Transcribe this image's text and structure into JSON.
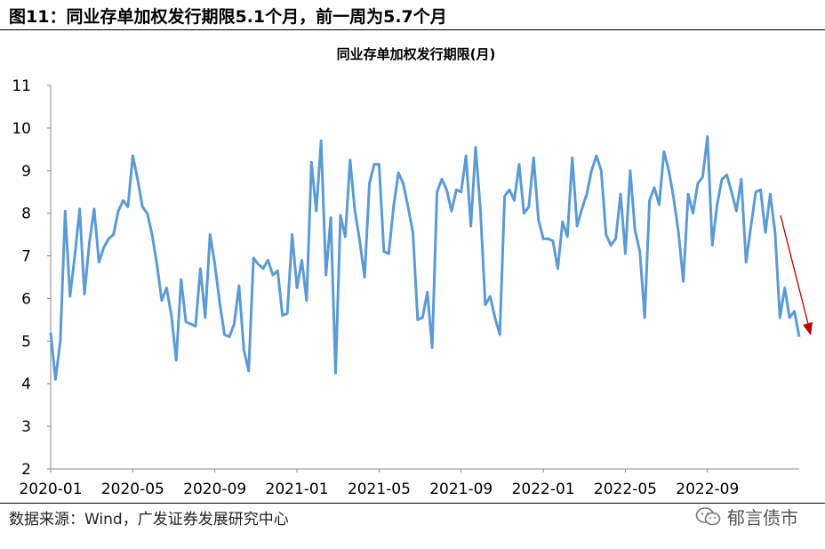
{
  "figure": {
    "title": "图11：同业存单加权发行期限5.1个月，前一周为5.7个月",
    "source": "数据来源：Wind，广发证券发展研究中心",
    "watermark": "郁言债市",
    "watermark_icon": "wechat-icon"
  },
  "chart_data": {
    "type": "line",
    "title": "同业存单加权发行期限(月)",
    "xlabel": "",
    "ylabel": "",
    "ylim": [
      2,
      11
    ],
    "yticks": [
      2,
      3,
      4,
      5,
      6,
      7,
      8,
      9,
      10,
      11
    ],
    "xticks": [
      "2020-01",
      "2020-05",
      "2020-09",
      "2021-01",
      "2021-05",
      "2021-09",
      "2022-01",
      "2022-05",
      "2022-09"
    ],
    "xtick_index": [
      0,
      17,
      34,
      51,
      68,
      85,
      102,
      119,
      136
    ],
    "grid": false,
    "line_color": "#5B9BD5",
    "arrow_color": "#C00000",
    "series": [
      {
        "name": "",
        "values": [
          5.2,
          4.1,
          5.0,
          8.05,
          6.05,
          7.0,
          8.1,
          6.1,
          7.3,
          8.1,
          6.85,
          7.2,
          7.4,
          7.5,
          8.05,
          8.3,
          8.15,
          9.35,
          8.8,
          8.15,
          8.0,
          7.5,
          6.8,
          5.95,
          6.25,
          5.6,
          4.55,
          6.45,
          5.45,
          5.4,
          5.35,
          6.7,
          5.55,
          7.5,
          6.8,
          5.9,
          5.15,
          5.1,
          5.4,
          6.3,
          4.8,
          4.3,
          6.95,
          6.8,
          6.7,
          6.9,
          6.55,
          6.65,
          5.6,
          5.65,
          7.5,
          6.25,
          6.9,
          5.95,
          9.2,
          8.05,
          9.7,
          6.55,
          7.9,
          4.25,
          7.95,
          7.45,
          9.25,
          8.05,
          7.35,
          6.5,
          8.7,
          9.15,
          9.15,
          7.1,
          7.05,
          8.15,
          8.95,
          8.7,
          8.15,
          7.55,
          5.5,
          5.55,
          6.15,
          4.85,
          8.5,
          8.8,
          8.55,
          8.05,
          8.55,
          8.5,
          9.35,
          7.7,
          9.55,
          8.05,
          5.85,
          6.05,
          5.55,
          5.15,
          8.4,
          8.55,
          8.3,
          9.15,
          8.0,
          8.15,
          9.3,
          7.85,
          7.4,
          7.4,
          7.35,
          6.7,
          7.8,
          7.45,
          9.3,
          7.7,
          8.1,
          8.45,
          9.0,
          9.35,
          9.0,
          7.5,
          7.25,
          7.4,
          8.45,
          7.05,
          9.0,
          7.6,
          7.1,
          5.55,
          8.3,
          8.6,
          8.2,
          9.45,
          9.0,
          8.35,
          7.55,
          6.4,
          8.45,
          8.0,
          8.7,
          8.85,
          9.8,
          7.25,
          8.2,
          8.8,
          8.9,
          8.5,
          8.05,
          8.8,
          6.85,
          7.7,
          8.5,
          8.55,
          7.55,
          8.45,
          7.55,
          5.55,
          6.25,
          5.55,
          5.7,
          5.1
        ]
      }
    ]
  }
}
